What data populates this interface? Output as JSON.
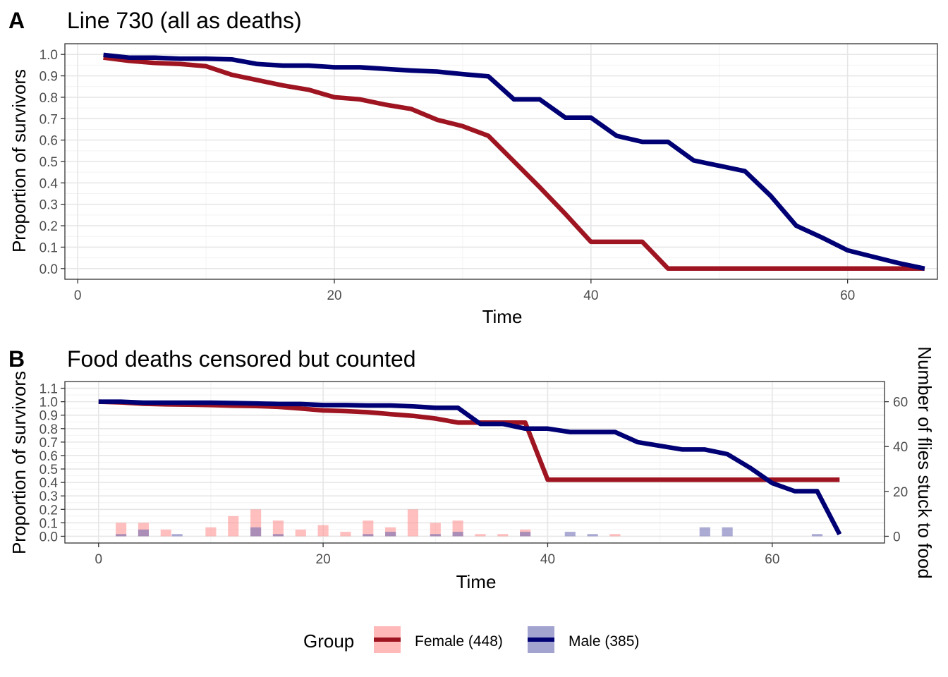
{
  "chart_data": [
    {
      "type": "line",
      "tag": "A",
      "title": "Line 730 (all as deaths)",
      "xlabel": "Time",
      "ylabel": "Proportion of survivors",
      "xlim": [
        -1,
        67
      ],
      "ylim": [
        -0.05,
        1.05
      ],
      "x_ticks": [
        0,
        20,
        40,
        60
      ],
      "y_ticks": [
        0.0,
        0.1,
        0.2,
        0.3,
        0.4,
        0.5,
        0.6,
        0.7,
        0.8,
        0.9,
        1.0
      ],
      "y_tick_labels": [
        "0.0",
        "0.1",
        "0.2",
        "0.3",
        "0.4",
        "0.5",
        "0.6",
        "0.7",
        "0.8",
        "0.9",
        "1.0"
      ],
      "grid": true,
      "series": [
        {
          "name": "Female (448)",
          "color": "#9E1421",
          "x": [
            2,
            4,
            6,
            8,
            10,
            12,
            14,
            16,
            18,
            20,
            22,
            24,
            26,
            28,
            30,
            32,
            34,
            36,
            38,
            40,
            42,
            44,
            46,
            48,
            50,
            52,
            54,
            56,
            58,
            60,
            62,
            64,
            66
          ],
          "y": [
            0.985,
            0.97,
            0.96,
            0.955,
            0.945,
            0.905,
            0.88,
            0.855,
            0.835,
            0.8,
            0.79,
            0.765,
            0.745,
            0.695,
            0.665,
            0.62,
            0.5,
            0.38,
            0.255,
            0.125,
            0.125,
            0.125,
            0.0,
            0.0,
            0.0,
            0.0,
            0.0,
            0.0,
            0.0,
            0.0,
            0.0,
            0.0,
            0.0
          ]
        },
        {
          "name": "Male (385)",
          "color": "#000075",
          "x": [
            2,
            4,
            6,
            8,
            10,
            12,
            14,
            16,
            18,
            20,
            22,
            24,
            26,
            28,
            30,
            32,
            34,
            36,
            38,
            40,
            42,
            44,
            46,
            48,
            50,
            52,
            54,
            56,
            58,
            60,
            62,
            64,
            66
          ],
          "y": [
            0.998,
            0.985,
            0.985,
            0.98,
            0.98,
            0.977,
            0.955,
            0.948,
            0.948,
            0.94,
            0.94,
            0.932,
            0.925,
            0.92,
            0.908,
            0.898,
            0.79,
            0.79,
            0.705,
            0.705,
            0.62,
            0.592,
            0.592,
            0.505,
            0.48,
            0.455,
            0.34,
            0.2,
            0.145,
            0.085,
            0.055,
            0.025,
            0.0
          ]
        }
      ]
    },
    {
      "type": "line",
      "tag": "B",
      "title": "Food deaths censored but counted",
      "xlabel": "Time",
      "ylabel": "Proportion of survivors",
      "ylabel_right": "Number of flies stuck to food",
      "xlim": [
        -3,
        70
      ],
      "ylim": [
        -0.05,
        1.15
      ],
      "y2lim": [
        -3,
        69
      ],
      "x_ticks": [
        0,
        20,
        40,
        60
      ],
      "y_ticks": [
        0.0,
        0.1,
        0.2,
        0.3,
        0.4,
        0.5,
        0.6,
        0.7,
        0.8,
        0.9,
        1.0,
        1.1
      ],
      "y_tick_labels": [
        "0.0",
        "0.1",
        "0.2",
        "0.3",
        "0.4",
        "0.5",
        "0.6",
        "0.7",
        "0.8",
        "0.9",
        "1.0",
        "1.1"
      ],
      "y2_ticks": [
        0,
        20,
        40,
        60
      ],
      "grid": true,
      "series": [
        {
          "name": "Female (448)",
          "color": "#9E1421",
          "x": [
            0,
            2,
            4,
            6,
            8,
            10,
            12,
            14,
            16,
            18,
            20,
            22,
            24,
            26,
            28,
            30,
            32,
            34,
            36,
            38,
            40,
            42,
            44,
            46,
            48,
            50,
            52,
            54,
            56,
            58,
            60,
            62,
            64,
            66
          ],
          "y": [
            1.0,
            0.995,
            0.985,
            0.98,
            0.978,
            0.975,
            0.97,
            0.968,
            0.962,
            0.95,
            0.935,
            0.93,
            0.922,
            0.908,
            0.895,
            0.875,
            0.845,
            0.845,
            0.845,
            0.845,
            0.42,
            0.42,
            0.42,
            0.42,
            0.42,
            0.42,
            0.42,
            0.42,
            0.42,
            0.42,
            0.42,
            0.42,
            0.42,
            0.42
          ]
        },
        {
          "name": "Male (385)",
          "color": "#000075",
          "x": [
            0,
            2,
            4,
            6,
            8,
            10,
            12,
            14,
            16,
            18,
            20,
            22,
            24,
            26,
            28,
            30,
            32,
            34,
            36,
            38,
            40,
            42,
            44,
            46,
            48,
            50,
            52,
            54,
            56,
            58,
            60,
            62,
            64,
            66
          ],
          "y": [
            1.0,
            1.0,
            0.993,
            0.993,
            0.993,
            0.993,
            0.99,
            0.987,
            0.983,
            0.983,
            0.975,
            0.975,
            0.972,
            0.972,
            0.965,
            0.955,
            0.955,
            0.835,
            0.835,
            0.8,
            0.8,
            0.775,
            0.775,
            0.775,
            0.7,
            0.672,
            0.645,
            0.645,
            0.61,
            0.51,
            0.395,
            0.335,
            0.335,
            0.015
          ]
        }
      ],
      "bars": [
        {
          "name": "Female (448)",
          "color": "#FF8A8A",
          "x": [
            2,
            4,
            6,
            10,
            12,
            14,
            16,
            18,
            20,
            22,
            24,
            26,
            28,
            30,
            32,
            34,
            36,
            38,
            46
          ],
          "values": [
            6,
            6,
            3,
            4,
            9,
            12,
            7,
            3,
            5,
            2,
            7,
            4,
            12,
            6,
            7,
            1,
            1,
            3,
            1
          ]
        },
        {
          "name": "Male (385)",
          "color": "#6666B0",
          "x": [
            2,
            4,
            7,
            14,
            16,
            24,
            26,
            30,
            32,
            38,
            42,
            44,
            54,
            56,
            64
          ],
          "values": [
            1,
            3,
            1,
            4,
            1,
            1,
            2,
            1,
            2,
            2,
            2,
            1,
            4,
            4,
            1
          ]
        }
      ]
    }
  ],
  "legend": {
    "title": "Group",
    "entries": [
      {
        "label": "Female (448)",
        "line_color": "#9E1421",
        "fill_color": "#FF8A8A"
      },
      {
        "label": "Male (385)",
        "line_color": "#000075",
        "fill_color": "#6666B0"
      }
    ]
  }
}
